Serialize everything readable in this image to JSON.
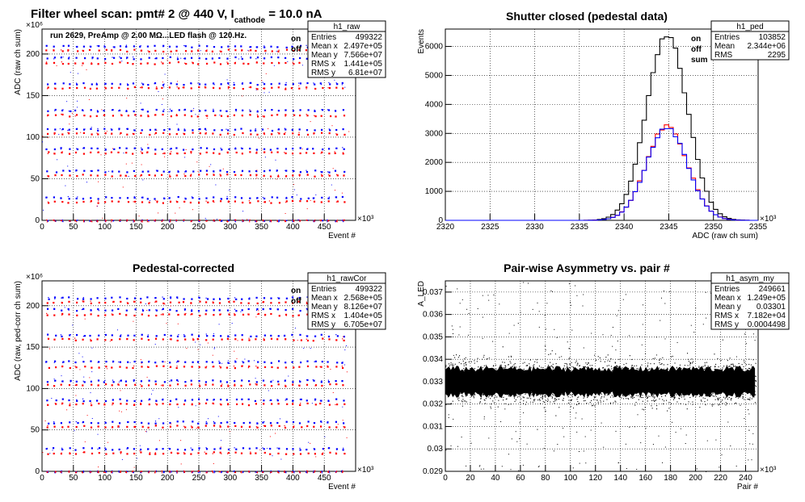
{
  "page": {
    "main_title_parts": [
      "Filter wheel scan: pmt#   2 @   440 V, I",
      "cathode",
      " = 10.0 nA"
    ]
  },
  "panels": [
    {
      "title": "",
      "stats": {
        "name": "h1_raw",
        "rows": [
          [
            "Entries",
            "499322"
          ],
          [
            "Mean x",
            "2.497e+05"
          ],
          [
            "Mean y",
            "7.566e+07"
          ],
          [
            "RMS x",
            "1.441e+05"
          ],
          [
            "RMS y",
            "6.81e+07"
          ]
        ]
      },
      "note": "run 2629, PreAmp @ 2.00 MΩ...LED flash @  120.Hz.",
      "legend": [
        {
          "label": "on",
          "color": "#0000ff"
        },
        {
          "label": "off",
          "color": "#ff0000"
        }
      ]
    },
    {
      "title": "Shutter closed (pedestal data)",
      "stats": {
        "name": "h1_ped",
        "rows": [
          [
            "Entries",
            "103852"
          ],
          [
            "Mean",
            "2.344e+06"
          ],
          [
            "RMS",
            "2295"
          ]
        ]
      },
      "legend": [
        {
          "label": "on",
          "color": "#0000ff"
        },
        {
          "label": "off",
          "color": "#ff0000"
        },
        {
          "label": "sum",
          "color": "#000000"
        }
      ]
    },
    {
      "title": "Pedestal-corrected",
      "stats": {
        "name": "h1_rawCor",
        "rows": [
          [
            "Entries",
            "499322"
          ],
          [
            "Mean x",
            "2.568e+05"
          ],
          [
            "Mean y",
            "8.126e+07"
          ],
          [
            "RMS x",
            "1.404e+05"
          ],
          [
            "RMS y",
            "6.705e+07"
          ]
        ]
      },
      "legend": [
        {
          "label": "on",
          "color": "#0000ff"
        },
        {
          "label": "off",
          "color": "#ff0000"
        }
      ]
    },
    {
      "title": "Pair-wise Asymmetry vs. pair #",
      "stats": {
        "name": "h1_asym_my",
        "rows": [
          [
            "Entries",
            "249661"
          ],
          [
            "Mean x",
            "1.249e+05"
          ],
          [
            "Mean y",
            "0.03301"
          ],
          [
            "RMS x",
            "7.182e+04"
          ],
          [
            "RMS y",
            "0.0004498"
          ]
        ]
      },
      "legend": []
    }
  ],
  "chart_data": [
    {
      "type": "scatter",
      "xlabel": "Event #",
      "ylabel": "ADC (raw ch sum)",
      "x_multiplier": "×10³",
      "y_multiplier": "×10⁶",
      "xlim": [
        0,
        500000
      ],
      "ylim": [
        0,
        230
      ],
      "xticks": [
        0,
        50,
        100,
        150,
        200,
        250,
        300,
        350,
        400,
        450
      ],
      "yticks": [
        0,
        50,
        100,
        150,
        200
      ],
      "grid": true,
      "levels": [
        0,
        23,
        28,
        55,
        60,
        82,
        87,
        105,
        110,
        127,
        133,
        160,
        165,
        190,
        196,
        205,
        210
      ],
      "series": [
        {
          "name": "on",
          "color": "#0000ff",
          "levels": [
            0,
            28,
            60,
            87,
            110,
            133,
            165,
            196,
            210
          ]
        },
        {
          "name": "off",
          "color": "#ff0000",
          "levels": [
            0,
            23,
            55,
            82,
            105,
            127,
            160,
            190,
            205
          ]
        }
      ]
    },
    {
      "type": "line",
      "xlabel": "ADC (raw ch sum)",
      "ylabel": "Events",
      "x_multiplier": "×10³",
      "xlim": [
        2320,
        2355
      ],
      "ylim": [
        0,
        6600
      ],
      "xticks": [
        2320,
        2325,
        2330,
        2335,
        2340,
        2345,
        2350,
        2355
      ],
      "yticks": [
        0,
        1000,
        2000,
        3000,
        4000,
        5000,
        6000
      ],
      "grid": true,
      "hist_center": 2344.8,
      "hist_sigma": 2.3,
      "series": [
        {
          "name": "sum",
          "color": "#000000",
          "peak": 6400
        },
        {
          "name": "on",
          "color": "#0000ff",
          "peak": 3200
        },
        {
          "name": "off",
          "color": "#ff0000",
          "peak": 3250
        }
      ]
    },
    {
      "type": "scatter",
      "xlabel": "Event #",
      "ylabel": "ADC (raw, ped-corr ch sum)",
      "x_multiplier": "×10³",
      "y_multiplier": "×10⁶",
      "xlim": [
        0,
        500000
      ],
      "ylim": [
        0,
        230
      ],
      "xticks": [
        0,
        50,
        100,
        150,
        200,
        250,
        300,
        350,
        400,
        450
      ],
      "yticks": [
        0,
        50,
        100,
        150,
        200
      ],
      "grid": true,
      "levels": [
        0,
        23,
        28,
        55,
        60,
        82,
        87,
        105,
        110,
        127,
        133,
        160,
        165,
        190,
        196,
        205,
        210
      ],
      "series": [
        {
          "name": "on",
          "color": "#0000ff",
          "levels": [
            0,
            28,
            60,
            87,
            110,
            133,
            165,
            196,
            210
          ]
        },
        {
          "name": "off",
          "color": "#ff0000",
          "levels": [
            0,
            23,
            55,
            82,
            105,
            127,
            160,
            190,
            205
          ]
        }
      ]
    },
    {
      "type": "scatter",
      "xlabel": "Pair #",
      "ylabel": "A_LED",
      "x_multiplier": "×10³",
      "xlim": [
        0,
        250000
      ],
      "ylim": [
        0.029,
        0.0375
      ],
      "xticks": [
        0,
        20,
        40,
        60,
        80,
        100,
        120,
        140,
        160,
        180,
        200,
        220,
        240
      ],
      "yticks": [
        0.029,
        0.03,
        0.031,
        0.032,
        0.033,
        0.034,
        0.035,
        0.036,
        0.037
      ],
      "grid": true,
      "band_center": 0.033,
      "band_half_width": 0.0008
    }
  ]
}
